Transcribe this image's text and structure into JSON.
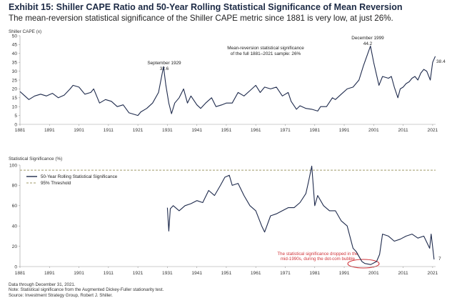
{
  "header": {
    "title": "Exhibit 15: Shiller CAPE Ratio and 50-Year Rolling Statistical Significance of Mean Reversion",
    "subtitle": "The mean-reversion statistical significance of the Shiller CAPE metric since 1881 is very low, at just 26%."
  },
  "notes": {
    "line1": "Data through December 31, 2021.",
    "line2": "Note: Statistical significance from the Augmented Dickey-Fuller stationarity test.",
    "line3": "Source: Investment Strategy Group, Robert J. Shiller."
  },
  "colors": {
    "series": "#1f2b4d",
    "threshold": "#a09a6a",
    "highlight": "#d0343a",
    "axis": "#999999"
  },
  "chart_data": [
    {
      "type": "line",
      "title": "Shiller CAPE Ratio",
      "ylabel": "Shiller CAPE (x)",
      "xlim": [
        1881,
        2022
      ],
      "ylim": [
        0,
        50
      ],
      "x_ticks": [
        "1881",
        "1891",
        "1901",
        "1911",
        "1921",
        "1931",
        "1941",
        "1951",
        "1961",
        "1971",
        "1981",
        "1991",
        "2001",
        "2011",
        "2021"
      ],
      "y_ticks": [
        "0",
        "5",
        "10",
        "15",
        "20",
        "25",
        "30",
        "35",
        "40",
        "45",
        "50"
      ],
      "series": [
        {
          "name": "Shiller CAPE",
          "x": [
            1881,
            1882,
            1884,
            1886,
            1888,
            1890,
            1892,
            1894,
            1896,
            1898,
            1899,
            1901,
            1903,
            1905,
            1906,
            1908,
            1910,
            1912,
            1914,
            1916,
            1918,
            1920,
            1921,
            1922,
            1924,
            1926,
            1928,
            1929.7,
            1930.5,
            1931.5,
            1932.4,
            1933.5,
            1935,
            1936.5,
            1937.8,
            1939,
            1941,
            1942.3,
            1944,
            1946,
            1947.5,
            1949.5,
            1951,
            1953,
            1955,
            1957,
            1959,
            1961,
            1962.5,
            1964,
            1966,
            1968,
            1970,
            1972,
            1973,
            1974.8,
            1976,
            1978,
            1980,
            1982,
            1983,
            1985,
            1987,
            1988,
            1990,
            1992,
            1994,
            1996,
            1997.5,
            1999.9,
            2001,
            2002.8,
            2004,
            2006,
            2007,
            2008,
            2009.2,
            2010,
            2011,
            2012,
            2013,
            2014,
            2015,
            2016,
            2017,
            2018,
            2019,
            2020.2,
            2021,
            2021.9
          ],
          "values": [
            18.5,
            17,
            14,
            16,
            17,
            16,
            17.5,
            15,
            16.5,
            20,
            22,
            21,
            17,
            18,
            20,
            12,
            14,
            13,
            10,
            11,
            6.5,
            5.5,
            5,
            7,
            9,
            12,
            18,
            32.6,
            22,
            12,
            6,
            12,
            15,
            20,
            12,
            16,
            11,
            9,
            12,
            15,
            10,
            11,
            12,
            12,
            18,
            16,
            19,
            22,
            18,
            21,
            20,
            21,
            16,
            18,
            13,
            8.5,
            10.5,
            9,
            8.5,
            7.5,
            10,
            10,
            15,
            14,
            17,
            20,
            21,
            25,
            33,
            44.2,
            35,
            22,
            27,
            26,
            27,
            21,
            15,
            20,
            21,
            23,
            24,
            26,
            27,
            25,
            29,
            31,
            30,
            25,
            35,
            38.4
          ]
        }
      ],
      "annotations": [
        {
          "title": "September 1929",
          "value": "32.6",
          "x": 1929.7,
          "y": 32.6
        },
        {
          "title": "December 1999",
          "value": "44.2",
          "x": 1999.9,
          "y": 44.2
        },
        {
          "value": "38.4",
          "x": 2021.9,
          "y": 38.4
        }
      ],
      "text_box": {
        "line1": "Mean-reversion statistical significance",
        "line2": "of the full 1881–2021 sample: 26%"
      }
    },
    {
      "type": "line",
      "title": "50-Year Rolling Statistical Significance",
      "ylabel": "Statistical Significance (%)",
      "xlim": [
        1881,
        2022
      ],
      "ylim": [
        0,
        100
      ],
      "x_ticks": [
        "1881",
        "1891",
        "1901",
        "1911",
        "1921",
        "1931",
        "1941",
        "1951",
        "1961",
        "1971",
        "1981",
        "1991",
        "2001",
        "2011",
        "2021"
      ],
      "y_ticks": [
        "0",
        "20",
        "40",
        "60",
        "80",
        "100"
      ],
      "threshold": 95,
      "series": [
        {
          "name": "50-Year Rolling Statistical Significance",
          "x": [
            1931,
            1931.5,
            1932,
            1933,
            1935,
            1937,
            1939,
            1941,
            1943,
            1945,
            1947,
            1949,
            1950.5,
            1952,
            1953,
            1955,
            1957,
            1959,
            1961,
            1963,
            1964,
            1966,
            1968,
            1970,
            1972,
            1974,
            1976,
            1978,
            1979,
            1980,
            1981,
            1982,
            1984,
            1986,
            1988,
            1990,
            1992,
            1994,
            1995,
            1996,
            1997,
            1998,
            2000,
            2002,
            2003,
            2004,
            2006,
            2008,
            2010,
            2012,
            2014,
            2016,
            2018,
            2020,
            2020.5,
            2021.5
          ],
          "values": [
            58,
            35,
            57,
            60,
            55,
            60,
            62,
            65,
            63,
            75,
            70,
            80,
            88,
            90,
            80,
            82,
            70,
            60,
            55,
            40,
            34,
            50,
            52,
            55,
            58,
            58,
            63,
            72,
            85,
            99,
            60,
            70,
            60,
            55,
            55,
            45,
            40,
            18,
            15,
            10,
            5,
            3,
            2,
            5,
            12,
            32,
            30,
            25,
            27,
            30,
            32,
            28,
            30,
            18,
            32,
            7
          ]
        }
      ],
      "legend": {
        "series_label": "50-Year Rolling Statistical Significance",
        "threshold_label": "95% Threshold"
      },
      "annotations": [
        {
          "value": "7",
          "x": 2021.5,
          "y": 7
        }
      ],
      "red_note": {
        "line1": "The statistical significance dropped in the",
        "line2": "mid-1990s, during the dot-com bubble"
      }
    }
  ]
}
